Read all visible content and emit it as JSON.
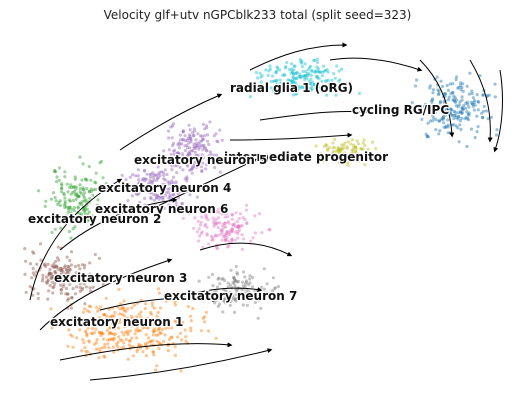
{
  "chart_data": {
    "type": "scatter",
    "subtype": "velocity-stream-embedding",
    "title": "Velocity glf+utv nGPCblk233 total (split seed=323)",
    "xlabel": "",
    "ylabel": "",
    "axes_visible": false,
    "grid": false,
    "legend": "on data",
    "clusters": [
      {
        "name": "radial glia 1 (oRG)",
        "color": "#17becf"
      },
      {
        "name": "cycling RG/IPC",
        "color": "#1f77b4"
      },
      {
        "name": "intermediate progenitor",
        "color": "#bcbd22"
      },
      {
        "name": "excitatory neuron 5",
        "color": "#9467bd"
      },
      {
        "name": "excitatory neuron 4",
        "color": "#9467bd"
      },
      {
        "name": "excitatory neuron 6",
        "color": "#e377c2"
      },
      {
        "name": "excitatory neuron 2",
        "color": "#2ca02c"
      },
      {
        "name": "excitatory neuron 3",
        "color": "#8c564b"
      },
      {
        "name": "excitatory neuron 7",
        "color": "#7f7f7f"
      },
      {
        "name": "excitatory neuron 1",
        "color": "#ff7f0e"
      }
    ]
  }
}
